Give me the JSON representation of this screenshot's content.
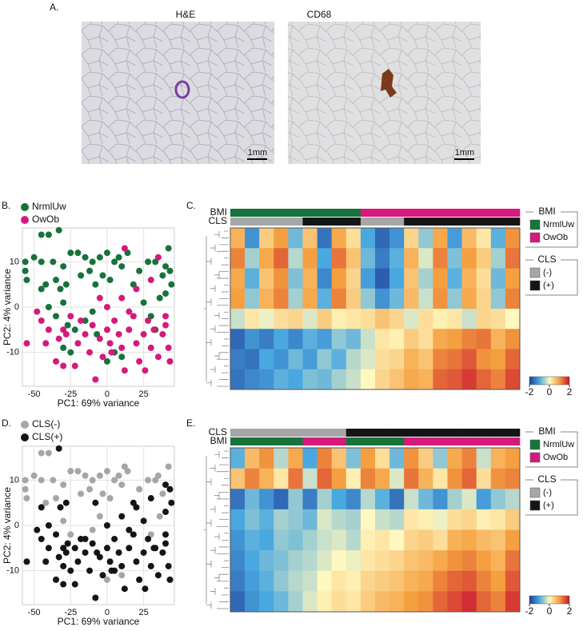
{
  "images": {
    "panel": "A.",
    "items": [
      {
        "title": "H&E",
        "scale_bar": "1mm"
      },
      {
        "title": "CD68",
        "scale_bar": "1mm"
      }
    ]
  },
  "chart_data": [
    {
      "type": "scatter",
      "panel": "B.",
      "xlabel": "PC1: 69% variance",
      "ylabel": "PC2: 4% variance",
      "xlim": [
        -58,
        46
      ],
      "ylim": [
        -17.5,
        17.5
      ],
      "xticks": [
        -50,
        -25,
        0,
        25
      ],
      "yticks": [
        -10,
        0,
        10
      ],
      "grid": true,
      "legend": "top-left",
      "series": [
        {
          "name": "NrmlUw",
          "color": "#17733b",
          "x": [
            -56,
            -56,
            -55,
            -45,
            -40,
            -33,
            -50,
            -45,
            -37,
            -30,
            -45,
            -42,
            -35,
            -32,
            -28,
            -25,
            -20,
            -15,
            -10,
            -18,
            -12,
            -8,
            -5,
            0,
            5,
            8,
            -3,
            2,
            10,
            14,
            18,
            22,
            28,
            33,
            38,
            40,
            42,
            40,
            36,
            44,
            -40,
            -35,
            -30,
            -27,
            -22,
            -15,
            -10,
            -7,
            5,
            10,
            0,
            30,
            25,
            33,
            -25,
            -30,
            43
          ],
          "y": [
            10,
            8,
            6,
            16,
            16,
            17,
            11,
            10,
            10,
            9,
            4,
            5,
            6,
            4,
            5,
            12,
            12,
            11,
            10,
            7,
            8,
            5,
            11,
            12,
            10,
            11,
            7,
            6,
            9,
            12,
            5,
            8,
            10,
            10,
            7,
            9,
            13,
            3,
            2,
            5,
            0,
            -2,
            1,
            -4,
            -5,
            -3,
            -1,
            -6,
            -10,
            -11,
            -12,
            -2,
            1,
            -5,
            -10,
            -9,
            8
          ]
        },
        {
          "name": "OwOb",
          "color": "#d6197c",
          "x": [
            -55,
            -45,
            -40,
            -42,
            -35,
            -33,
            -30,
            -28,
            -25,
            -20,
            -18,
            -15,
            -12,
            -10,
            -5,
            -3,
            -8,
            0,
            2,
            5,
            8,
            10,
            12,
            15,
            18,
            20,
            22,
            25,
            28,
            30,
            32,
            35,
            38,
            40,
            42,
            43,
            -30,
            -22,
            -5,
            0,
            10,
            20,
            30,
            35,
            12,
            15,
            -48,
            3,
            26,
            40
          ],
          "y": [
            -8,
            -3,
            -5,
            -8,
            -12,
            -7,
            -5,
            -6,
            -2,
            -8,
            -3,
            -6,
            -10,
            -4,
            -7,
            -11,
            -16,
            -5,
            -8,
            -3,
            -6,
            -9,
            -14,
            -5,
            -2,
            -8,
            -12,
            -6,
            -3,
            -9,
            -5,
            -11,
            -6,
            -2,
            -9,
            -12,
            -13,
            -13,
            2,
            0,
            2,
            4,
            6,
            11,
            13,
            -1,
            -1,
            -10,
            -14,
            -4
          ]
        }
      ]
    },
    {
      "type": "heatmap",
      "panel": "C.",
      "annotations": [
        {
          "name": "BMI",
          "values": [
            "NrmlUw",
            "NrmlUw",
            "NrmlUw",
            "NrmlUw",
            "NrmlUw",
            "NrmlUw",
            "NrmlUw",
            "NrmlUw",
            "NrmlUw",
            "OwOb",
            "OwOb",
            "OwOb",
            "OwOb",
            "OwOb",
            "OwOb",
            "OwOb",
            "OwOb",
            "OwOb",
            "OwOb",
            "OwOb"
          ]
        },
        {
          "name": "CLS",
          "values": [
            "(-)",
            "(-)",
            "(-)",
            "(-)",
            "(-)",
            "(+)",
            "(+)",
            "(+)",
            "(+)",
            "(-)",
            "(-)",
            "(-)",
            "(+)",
            "(+)",
            "(+)",
            "(+)",
            "(+)",
            "(+)",
            "(+)",
            "(+)"
          ]
        }
      ],
      "legends": [
        {
          "title": "BMI",
          "items": [
            {
              "label": "NrmlUw",
              "color": "#17733b"
            },
            {
              "label": "OwOb",
              "color": "#d6197c"
            }
          ]
        },
        {
          "title": "CLS",
          "items": [
            {
              "label": "(-)",
              "color": "#a6a6a6"
            },
            {
              "label": "(+)",
              "color": "#151515"
            }
          ]
        }
      ],
      "colorbar": {
        "lim": [
          -2,
          2
        ],
        "ticks": [
          -2,
          0,
          2
        ]
      },
      "matrix": [
        [
          0.8,
          -1.2,
          0.5,
          1.0,
          -0.8,
          0.6,
          -1.5,
          0.9,
          0.3,
          -1.0,
          -1.6,
          -1.2,
          0.4,
          -0.6,
          0.9,
          -1.1,
          0.7,
          0.2,
          -0.9,
          1.1
        ],
        [
          1.2,
          -0.5,
          0.9,
          1.4,
          -0.4,
          1.0,
          -1.0,
          1.3,
          0.6,
          -0.8,
          -1.4,
          -0.9,
          0.8,
          -0.2,
          1.2,
          -0.7,
          1.0,
          0.5,
          -0.5,
          1.3
        ],
        [
          0.9,
          -0.9,
          0.6,
          1.1,
          -0.7,
          0.8,
          -1.3,
          1.0,
          0.4,
          -1.1,
          -1.7,
          -1.0,
          0.6,
          -0.5,
          1.0,
          -0.9,
          0.8,
          0.3,
          -0.8,
          1.0
        ],
        [
          1.0,
          -0.6,
          0.8,
          1.2,
          -0.5,
          0.9,
          -0.9,
          1.2,
          0.5,
          -0.6,
          -1.2,
          -0.8,
          0.7,
          -0.3,
          1.1,
          -0.6,
          0.9,
          0.4,
          -0.6,
          1.2
        ],
        [
          -0.3,
          0.2,
          -0.1,
          0.3,
          0.4,
          -0.2,
          0.5,
          0.1,
          0.2,
          0.3,
          0.6,
          0.4,
          -0.2,
          0.3,
          0.1,
          0.2,
          -0.3,
          0.4,
          0.3,
          0.0
        ],
        [
          -1.6,
          -1.2,
          -1.4,
          -1.0,
          -1.3,
          -0.9,
          -1.1,
          -0.6,
          -0.8,
          -0.3,
          0.2,
          0.1,
          0.5,
          0.3,
          0.9,
          1.0,
          1.2,
          1.3,
          0.8,
          1.1
        ],
        [
          -1.4,
          -1.5,
          -1.0,
          -1.2,
          -0.8,
          -1.1,
          -0.6,
          -0.9,
          -0.4,
          -0.2,
          0.3,
          0.4,
          0.8,
          0.6,
          1.2,
          1.3,
          1.5,
          1.1,
          1.0,
          1.4
        ],
        [
          -1.5,
          -1.3,
          -1.2,
          -0.9,
          -1.0,
          -0.7,
          -0.8,
          -0.5,
          -0.3,
          0.0,
          0.4,
          0.6,
          0.9,
          0.8,
          1.4,
          1.5,
          1.7,
          1.4,
          1.2,
          1.6
        ]
      ]
    },
    {
      "type": "scatter",
      "panel": "D.",
      "xlabel": "PC1: 69% variance",
      "ylabel": "PC2: 4% variance",
      "xlim": [
        -58,
        46
      ],
      "ylim": [
        -17.5,
        17.5
      ],
      "xticks": [
        -50,
        -25,
        0,
        25
      ],
      "yticks": [
        -10,
        0,
        10
      ],
      "grid": true,
      "legend": "top-left",
      "series": [
        {
          "name": "CLS(-)",
          "color": "#a6a6a6",
          "x": [
            -56,
            -56,
            -55,
            -45,
            -40,
            -50,
            -45,
            -37,
            -30,
            -42,
            -35,
            -25,
            -20,
            -15,
            -10,
            -18,
            -12,
            -5,
            0,
            5,
            8,
            -3,
            2,
            10,
            14,
            22,
            28,
            33,
            38,
            42,
            36,
            -30,
            -10,
            10,
            0,
            30,
            35,
            12,
            -5,
            -25
          ],
          "y": [
            10,
            8,
            6,
            16,
            16,
            11,
            10,
            10,
            9,
            5,
            6,
            12,
            12,
            11,
            10,
            7,
            8,
            11,
            12,
            10,
            11,
            7,
            6,
            9,
            12,
            8,
            10,
            10,
            7,
            13,
            2,
            1,
            -1,
            -11,
            -12,
            -2,
            11,
            13,
            2,
            -2
          ]
        },
        {
          "name": "CLS(+)",
          "color": "#151515",
          "x": [
            -33,
            -45,
            -32,
            -28,
            -8,
            18,
            40,
            40,
            44,
            -40,
            -35,
            -27,
            -22,
            -15,
            -7,
            5,
            25,
            33,
            -25,
            -30,
            43,
            -55,
            -45,
            -40,
            -42,
            -35,
            -33,
            -30,
            -28,
            -20,
            -18,
            -15,
            -12,
            -10,
            -5,
            -3,
            -8,
            0,
            2,
            5,
            8,
            10,
            12,
            15,
            18,
            20,
            22,
            25,
            28,
            30,
            32,
            35,
            38,
            40,
            42,
            43,
            -30,
            -22,
            0,
            10,
            20,
            30,
            15,
            -48,
            3,
            26,
            40
          ],
          "y": [
            17,
            4,
            4,
            5,
            5,
            5,
            9,
            3,
            5,
            0,
            -2,
            -4,
            -5,
            -3,
            -6,
            -10,
            1,
            -5,
            -10,
            -9,
            8,
            -8,
            -3,
            -5,
            -8,
            -12,
            -7,
            -5,
            -6,
            -8,
            -3,
            -6,
            -10,
            -4,
            -7,
            -11,
            -16,
            -5,
            -8,
            -3,
            -6,
            -9,
            -14,
            -5,
            -2,
            -8,
            -12,
            -6,
            -3,
            -9,
            -5,
            -11,
            -6,
            -2,
            -9,
            -12,
            -13,
            -13,
            0,
            2,
            4,
            6,
            -1,
            -1,
            -10,
            -14,
            -4
          ]
        }
      ]
    },
    {
      "type": "heatmap",
      "panel": "E.",
      "annotations": [
        {
          "name": "CLS",
          "values": [
            "(-)",
            "(-)",
            "(-)",
            "(-)",
            "(-)",
            "(-)",
            "(-)",
            "(-)",
            "(+)",
            "(+)",
            "(+)",
            "(+)",
            "(+)",
            "(+)",
            "(+)",
            "(+)",
            "(+)",
            "(+)",
            "(+)",
            "(+)"
          ]
        },
        {
          "name": "BMI",
          "values": [
            "NrmlUw",
            "NrmlUw",
            "NrmlUw",
            "NrmlUw",
            "NrmlUw",
            "OwOb",
            "OwOb",
            "OwOb",
            "NrmlUw",
            "NrmlUw",
            "NrmlUw",
            "NrmlUw",
            "OwOb",
            "OwOb",
            "OwOb",
            "OwOb",
            "OwOb",
            "OwOb",
            "OwOb",
            "OwOb"
          ]
        }
      ],
      "legends": [
        {
          "title": "BMI",
          "items": [
            {
              "label": "NrmlUw",
              "color": "#17733b"
            },
            {
              "label": "OwOb",
              "color": "#d6197c"
            }
          ]
        },
        {
          "title": "CLS",
          "items": [
            {
              "label": "(-)",
              "color": "#a6a6a6"
            },
            {
              "label": "(+)",
              "color": "#151515"
            }
          ]
        }
      ],
      "colorbar": {
        "lim": [
          -2,
          2
        ],
        "ticks": [
          -2,
          0,
          2
        ]
      },
      "matrix": [
        [
          -0.9,
          0.7,
          1.1,
          -0.4,
          0.9,
          -1.0,
          1.2,
          0.6,
          -0.7,
          1.0,
          0.3,
          -0.8,
          1.1,
          0.5,
          -0.6,
          0.9,
          1.2,
          -0.3,
          0.8,
          1.0
        ],
        [
          0.6,
          1.2,
          0.8,
          0.2,
          1.3,
          -0.3,
          1.4,
          1.0,
          0.1,
          1.2,
          0.9,
          -0.2,
          1.3,
          0.8,
          0.2,
          1.1,
          1.4,
          0.3,
          1.1,
          1.2
        ],
        [
          -1.5,
          -0.8,
          -1.2,
          -1.6,
          -0.6,
          -1.4,
          -0.5,
          -1.0,
          -1.3,
          -0.4,
          -0.9,
          -1.5,
          -0.3,
          -0.8,
          -1.2,
          -0.5,
          -0.2,
          -1.1,
          -0.6,
          -0.4
        ],
        [
          -1.0,
          -0.7,
          -0.9,
          -0.5,
          -0.6,
          -0.8,
          -0.2,
          -0.4,
          -0.5,
          0.0,
          -0.3,
          -0.4,
          0.2,
          0.1,
          -0.1,
          0.3,
          0.4,
          0.1,
          0.2,
          0.5
        ],
        [
          -1.2,
          -0.9,
          -1.0,
          -0.6,
          -0.7,
          -0.5,
          -0.3,
          -0.2,
          -0.4,
          0.1,
          0.2,
          0.0,
          0.4,
          0.5,
          0.3,
          0.8,
          0.9,
          0.7,
          0.6,
          1.0
        ],
        [
          -1.3,
          -1.0,
          -0.8,
          -0.7,
          -0.5,
          -0.4,
          -0.2,
          0.0,
          -0.1,
          0.2,
          0.3,
          0.4,
          0.6,
          0.7,
          0.9,
          1.1,
          1.2,
          1.0,
          0.8,
          1.3
        ],
        [
          -1.4,
          -1.1,
          -0.9,
          -0.6,
          -0.4,
          -0.3,
          0.0,
          0.2,
          0.1,
          0.4,
          0.5,
          0.6,
          0.8,
          0.9,
          1.2,
          1.4,
          1.5,
          1.2,
          1.0,
          1.5
        ],
        [
          -1.6,
          -1.2,
          -1.0,
          -0.8,
          -0.5,
          -0.2,
          0.1,
          0.3,
          0.2,
          0.5,
          0.7,
          0.8,
          1.0,
          1.1,
          1.4,
          1.6,
          1.8,
          1.4,
          1.2,
          1.7
        ]
      ]
    }
  ]
}
